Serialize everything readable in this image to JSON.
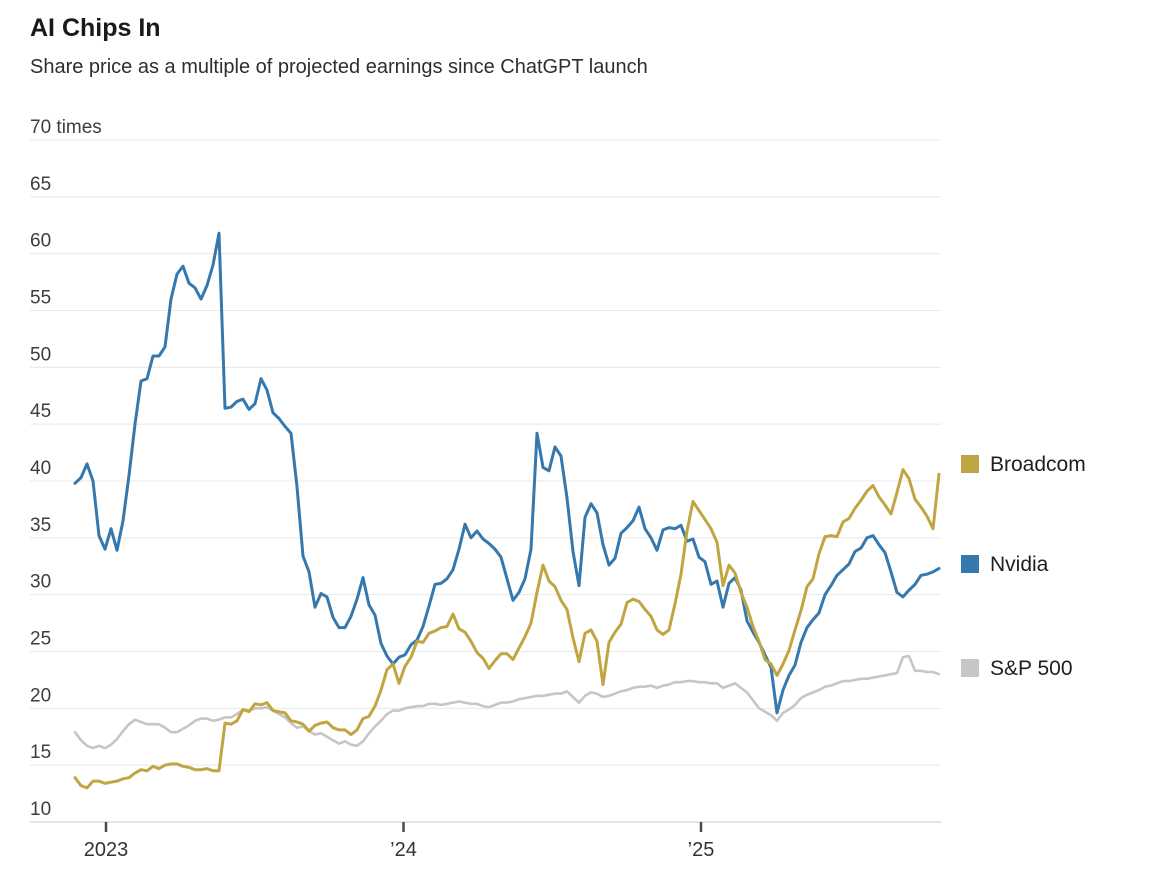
{
  "chart_data": {
    "type": "line",
    "title": "AI Chips In",
    "subtitle": "Share price as a multiple of projected earnings since ChatGPT launch",
    "ylabel_top": "70 times",
    "ylim": [
      10,
      70
    ],
    "y_ticks": [
      10,
      15,
      20,
      25,
      30,
      35,
      40,
      45,
      50,
      55,
      60,
      65,
      70
    ],
    "x_ticks": [
      {
        "label": "2023",
        "year": 2023.0
      },
      {
        "label": "’24",
        "year": 2024.0
      },
      {
        "label": "’25",
        "year": 2025.0
      }
    ],
    "x_range_years": [
      2022.896,
      2025.8
    ],
    "x_start_year": 2022.8958,
    "x_step_year": 0.020168,
    "grid": true,
    "legend_position": "right",
    "colors": {
      "broadcom": "#C0A542",
      "nvidia": "#3578AD",
      "sp500": "#C6C6C6"
    },
    "series": [
      {
        "name": "Broadcom",
        "color": "#C0A542",
        "values": [
          13.9,
          13.2,
          13.0,
          13.6,
          13.6,
          13.4,
          13.5,
          13.6,
          13.8,
          13.9,
          14.3,
          14.6,
          14.5,
          14.9,
          14.7,
          15.0,
          15.1,
          15.1,
          14.9,
          14.8,
          14.6,
          14.6,
          14.7,
          14.5,
          14.5,
          18.7,
          18.6,
          18.9,
          19.9,
          19.7,
          20.4,
          20.3,
          20.5,
          19.8,
          19.7,
          19.6,
          18.9,
          18.8,
          18.6,
          18.0,
          18.5,
          18.7,
          18.8,
          18.3,
          18.1,
          18.1,
          17.7,
          18.1,
          19.1,
          19.3,
          20.2,
          21.6,
          23.4,
          23.9,
          22.2,
          23.7,
          24.5,
          25.9,
          25.8,
          26.6,
          26.8,
          27.1,
          27.2,
          28.3,
          27.0,
          26.7,
          25.9,
          24.9,
          24.4,
          23.5,
          24.2,
          24.8,
          24.8,
          24.3,
          25.3,
          26.3,
          27.5,
          30.2,
          32.6,
          31.2,
          30.7,
          29.5,
          28.7,
          26.2,
          24.1,
          26.6,
          26.9,
          25.9,
          22.1,
          25.8,
          26.7,
          27.4,
          29.3,
          29.6,
          29.4,
          28.7,
          28.1,
          26.9,
          26.5,
          26.9,
          29.2,
          31.8,
          35.6,
          38.2,
          37.4,
          36.6,
          35.8,
          34.6,
          30.8,
          32.6,
          31.9,
          30.2,
          28.9,
          27.2,
          25.9,
          24.3,
          23.9,
          22.9,
          23.9,
          25.1,
          26.9,
          28.6,
          30.7,
          31.4,
          33.6,
          35.1,
          35.2,
          35.1,
          36.4,
          36.7,
          37.6,
          38.3,
          39.1,
          39.6,
          38.6,
          37.9,
          37.1,
          39.0,
          41.0,
          40.2,
          38.4,
          37.7,
          36.9,
          35.8,
          40.6
        ]
      },
      {
        "name": "Nvidia",
        "color": "#3578AD",
        "values": [
          39.8,
          40.3,
          41.5,
          40.0,
          35.2,
          34.0,
          35.8,
          33.9,
          36.5,
          40.5,
          45.0,
          48.8,
          49.0,
          51.0,
          51.0,
          51.8,
          56.0,
          58.2,
          58.9,
          57.4,
          57.0,
          56.0,
          57.2,
          59.0,
          61.8,
          46.4,
          46.5,
          47.0,
          47.2,
          46.3,
          46.8,
          49.0,
          48.0,
          46.0,
          45.5,
          44.8,
          44.2,
          39.5,
          33.4,
          32.0,
          28.9,
          30.1,
          29.8,
          28.0,
          27.1,
          27.1,
          28.1,
          29.6,
          31.5,
          29.1,
          28.2,
          25.7,
          24.6,
          23.9,
          24.5,
          24.7,
          25.6,
          26.0,
          27.2,
          29.0,
          30.9,
          31.0,
          31.4,
          32.2,
          34.0,
          36.2,
          35.0,
          35.6,
          34.9,
          34.5,
          34.0,
          33.3,
          31.4,
          29.5,
          30.2,
          31.4,
          34.0,
          44.2,
          41.2,
          40.9,
          43.0,
          42.2,
          38.5,
          33.8,
          30.8,
          36.8,
          38.0,
          37.2,
          34.4,
          32.6,
          33.2,
          35.4,
          35.9,
          36.5,
          37.7,
          35.8,
          35.0,
          33.9,
          35.7,
          35.9,
          35.8,
          36.1,
          34.7,
          34.9,
          33.3,
          32.9,
          30.9,
          31.2,
          28.9,
          31.0,
          31.5,
          30.4,
          27.7,
          26.7,
          25.8,
          24.7,
          23.6,
          19.6,
          21.6,
          22.9,
          23.8,
          25.8,
          27.1,
          27.8,
          28.4,
          30.0,
          30.8,
          31.7,
          32.2,
          32.7,
          33.8,
          34.1,
          35.0,
          35.2,
          34.4,
          33.7,
          32.0,
          30.2,
          29.8,
          30.4,
          30.9,
          31.7,
          31.8,
          32.0,
          32.3
        ]
      },
      {
        "name": "S&P 500",
        "color": "#C6C6C6",
        "values": [
          17.9,
          17.2,
          16.7,
          16.5,
          16.7,
          16.5,
          16.8,
          17.3,
          18.0,
          18.6,
          19.0,
          18.8,
          18.6,
          18.6,
          18.6,
          18.3,
          17.9,
          17.9,
          18.2,
          18.5,
          18.9,
          19.1,
          19.1,
          18.9,
          19.0,
          19.2,
          19.2,
          19.5,
          19.9,
          19.8,
          20.0,
          20.0,
          20.1,
          19.8,
          19.5,
          19.2,
          18.7,
          18.3,
          18.4,
          18.0,
          17.7,
          17.8,
          17.5,
          17.2,
          16.9,
          17.1,
          16.8,
          16.7,
          17.1,
          17.8,
          18.4,
          18.9,
          19.5,
          19.8,
          19.8,
          20.0,
          20.1,
          20.2,
          20.2,
          20.4,
          20.4,
          20.3,
          20.4,
          20.5,
          20.6,
          20.5,
          20.4,
          20.4,
          20.2,
          20.1,
          20.3,
          20.5,
          20.5,
          20.6,
          20.8,
          20.9,
          21.0,
          21.1,
          21.1,
          21.2,
          21.3,
          21.3,
          21.5,
          21.0,
          20.5,
          21.1,
          21.4,
          21.3,
          21.0,
          21.1,
          21.3,
          21.5,
          21.6,
          21.8,
          21.9,
          21.9,
          22.0,
          21.8,
          22.0,
          22.1,
          22.3,
          22.3,
          22.4,
          22.4,
          22.3,
          22.3,
          22.2,
          22.2,
          21.8,
          22.0,
          22.2,
          21.8,
          21.4,
          20.7,
          20.0,
          19.7,
          19.4,
          18.9,
          19.6,
          19.9,
          20.3,
          20.9,
          21.2,
          21.4,
          21.6,
          21.9,
          22.0,
          22.2,
          22.4,
          22.4,
          22.5,
          22.6,
          22.6,
          22.7,
          22.8,
          22.9,
          23.0,
          23.1,
          24.5,
          24.6,
          23.3,
          23.3,
          23.2,
          23.2,
          23.0
        ]
      }
    ]
  }
}
